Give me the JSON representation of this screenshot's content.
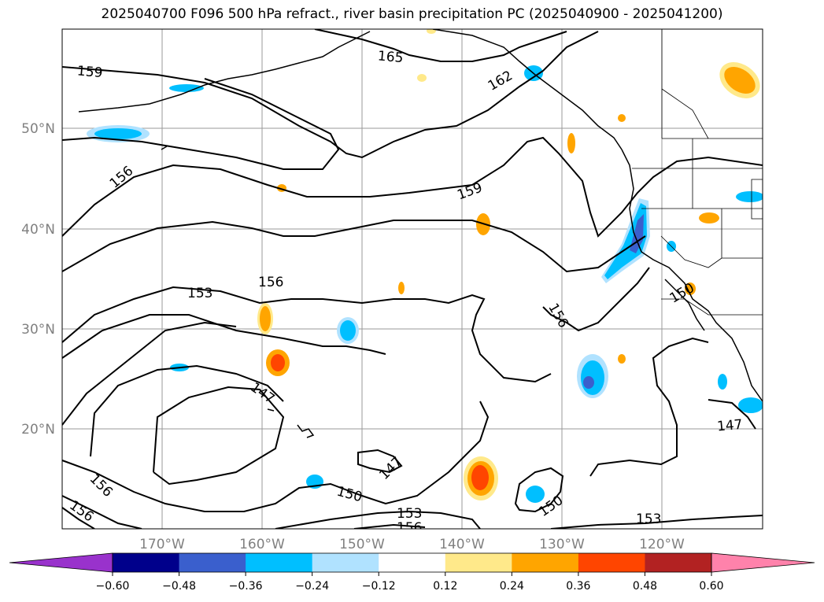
{
  "title": "2025040700 F096 500 hPa refract., river basin precipitation PC (2025040900 - 2025041200)",
  "map": {
    "lat_labels": [
      "50°N",
      "40°N",
      "30°N",
      "20°N"
    ],
    "lon_labels": [
      "170°W",
      "160°W",
      "150°W",
      "140°W",
      "130°W",
      "120°W"
    ],
    "grid_color": "#999999",
    "contour_labels": [
      "165",
      "162",
      "159",
      "159",
      "156",
      "156",
      "153",
      "156",
      "147",
      "147",
      "150",
      "153",
      "156",
      "150",
      "153",
      "147",
      "156",
      "156",
      "150"
    ]
  },
  "colorbar": {
    "ticks": [
      "−0.60",
      "−0.48",
      "−0.36",
      "−0.24",
      "−0.12",
      "0.12",
      "0.24",
      "0.36",
      "0.48",
      "0.60"
    ],
    "colors": [
      "#9932cc",
      "#00008b",
      "#3a5fcd",
      "#00bfff",
      "#b0e2ff",
      "#ffffff",
      "#ffe98a",
      "#ffa500",
      "#ff4500",
      "#b22222",
      "#ff82ab"
    ]
  }
}
